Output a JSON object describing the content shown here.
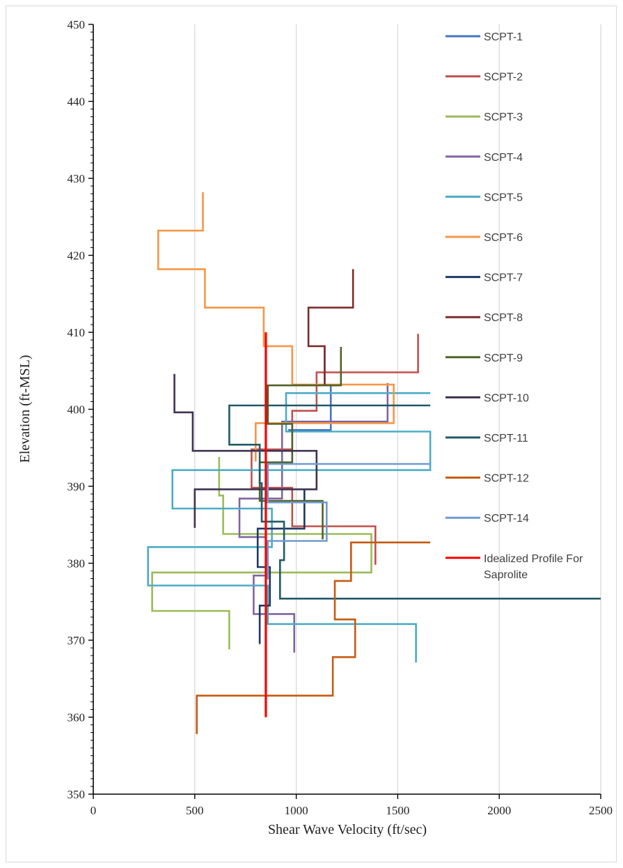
{
  "chart_data": {
    "type": "line",
    "xlabel": "Shear Wave Velocity (ft/sec)",
    "ylabel": "Elevation (ft-MSL)",
    "xlim": [
      0,
      2500
    ],
    "ylim": [
      350,
      450
    ],
    "xticks": [
      0,
      500,
      1000,
      1500,
      2000,
      2500
    ],
    "yticks": [
      350,
      360,
      370,
      380,
      390,
      400,
      410,
      420,
      430,
      440,
      450
    ],
    "grid": "vertical",
    "legend_position": "right",
    "series": [
      {
        "name": "SCPT-1",
        "color": "#4472c4",
        "points": [
          [
            1140,
            408.3
          ],
          [
            1140,
            403.1
          ],
          [
            1170,
            403.1
          ],
          [
            1170,
            397.3
          ],
          [
            960,
            397.3
          ]
        ]
      },
      {
        "name": "SCPT-2",
        "color": "#c0504d",
        "points": [
          [
            1600,
            409.8
          ],
          [
            1600,
            404.8
          ],
          [
            1100,
            404.8
          ],
          [
            1100,
            399.8
          ],
          [
            980,
            399.8
          ],
          [
            980,
            394.8
          ],
          [
            780,
            394.8
          ],
          [
            780,
            389.8
          ],
          [
            980,
            389.8
          ],
          [
            980,
            384.8
          ],
          [
            1390,
            384.8
          ],
          [
            1390,
            379.8
          ]
        ]
      },
      {
        "name": "SCPT-3",
        "color": "#9bbb59",
        "points": [
          [
            620,
            393.8
          ],
          [
            620,
            388.8
          ],
          [
            640,
            388.8
          ],
          [
            640,
            383.8
          ],
          [
            1370,
            383.8
          ],
          [
            1370,
            378.8
          ],
          [
            290,
            378.8
          ],
          [
            290,
            373.8
          ],
          [
            670,
            373.8
          ],
          [
            670,
            368.8
          ]
        ]
      },
      {
        "name": "SCPT-4",
        "color": "#8064a2",
        "points": [
          [
            1450,
            403.4
          ],
          [
            1450,
            398.4
          ],
          [
            930,
            398.4
          ],
          [
            930,
            393.4
          ],
          [
            930,
            388.4
          ],
          [
            720,
            388.4
          ],
          [
            720,
            383.4
          ],
          [
            850,
            383.4
          ],
          [
            850,
            378.4
          ],
          [
            790,
            378.4
          ],
          [
            790,
            373.4
          ],
          [
            990,
            373.4
          ],
          [
            990,
            368.4
          ]
        ]
      },
      {
        "name": "SCPT-5",
        "color": "#4bacc6",
        "points": [
          [
            1660,
            402.1
          ],
          [
            950,
            402.1
          ],
          [
            950,
            397.1
          ],
          [
            1660,
            397.1
          ],
          [
            1660,
            392.1
          ],
          [
            390,
            392.1
          ],
          [
            390,
            387.1
          ],
          [
            880,
            387.1
          ],
          [
            880,
            382.1
          ],
          [
            270,
            382.1
          ],
          [
            270,
            377.1
          ],
          [
            860,
            377.1
          ],
          [
            860,
            372.1
          ],
          [
            1590,
            372.1
          ],
          [
            1590,
            367.1
          ]
        ]
      },
      {
        "name": "SCPT-6",
        "color": "#f79646",
        "points": [
          [
            540,
            428.2
          ],
          [
            540,
            423.2
          ],
          [
            320,
            423.2
          ],
          [
            320,
            418.2
          ],
          [
            550,
            418.2
          ],
          [
            550,
            413.2
          ],
          [
            840,
            413.2
          ],
          [
            840,
            408.2
          ],
          [
            980,
            408.2
          ],
          [
            980,
            403.2
          ],
          [
            1480,
            403.2
          ],
          [
            1480,
            398.2
          ],
          [
            800,
            398.2
          ],
          [
            800,
            393.2
          ]
        ]
      },
      {
        "name": "SCPT-7",
        "color": "#1f3864",
        "points": [
          [
            1040,
            389.5
          ],
          [
            1040,
            384.5
          ],
          [
            810,
            384.5
          ],
          [
            810,
            379.5
          ],
          [
            870,
            379.5
          ],
          [
            870,
            374.5
          ],
          [
            820,
            374.5
          ],
          [
            820,
            369.5
          ]
        ]
      },
      {
        "name": "SCPT-8",
        "color": "#7b2c2c",
        "points": [
          [
            1280,
            418.2
          ],
          [
            1280,
            413.2
          ],
          [
            1060,
            413.2
          ],
          [
            1060,
            408.2
          ],
          [
            1140,
            408.2
          ],
          [
            1140,
            403.2
          ]
        ]
      },
      {
        "name": "SCPT-9",
        "color": "#4f6228",
        "points": [
          [
            1220,
            408.1
          ],
          [
            1220,
            403.1
          ],
          [
            860,
            403.1
          ],
          [
            860,
            398.1
          ],
          [
            980,
            398.1
          ],
          [
            980,
            393.1
          ],
          [
            820,
            393.1
          ],
          [
            820,
            388.1
          ],
          [
            1130,
            388.1
          ],
          [
            1130,
            383.1
          ]
        ]
      },
      {
        "name": "SCPT-10",
        "color": "#3f3151",
        "points": [
          [
            400,
            404.6
          ],
          [
            400,
            399.6
          ],
          [
            490,
            399.6
          ],
          [
            490,
            394.6
          ],
          [
            1100,
            394.6
          ],
          [
            1100,
            389.6
          ],
          [
            500,
            389.6
          ],
          [
            500,
            384.6
          ]
        ]
      },
      {
        "name": "SCPT-11",
        "color": "#215968",
        "points": [
          [
            1660,
            400.5
          ],
          [
            670,
            400.5
          ],
          [
            670,
            395.4
          ],
          [
            820,
            395.4
          ],
          [
            820,
            390.4
          ],
          [
            830,
            390.4
          ],
          [
            830,
            385.4
          ],
          [
            940,
            385.4
          ],
          [
            940,
            380.4
          ],
          [
            920,
            380.4
          ],
          [
            920,
            375.4
          ],
          [
            2500,
            375.4
          ]
        ]
      },
      {
        "name": "SCPT-12",
        "color": "#c55a11",
        "points": [
          [
            1660,
            382.7
          ],
          [
            1270,
            382.7
          ],
          [
            1270,
            377.7
          ],
          [
            1190,
            377.7
          ],
          [
            1190,
            372.7
          ],
          [
            1290,
            372.7
          ],
          [
            1290,
            367.8
          ],
          [
            1180,
            367.8
          ],
          [
            1180,
            362.8
          ],
          [
            510,
            362.8
          ],
          [
            510,
            357.8
          ]
        ]
      },
      {
        "name": "SCPT-14",
        "color": "#6f9bd1",
        "points": [
          [
            1660,
            392.9
          ],
          [
            860,
            392.9
          ],
          [
            860,
            387.9
          ],
          [
            1150,
            387.9
          ],
          [
            1150,
            382.9
          ],
          [
            860,
            382.9
          ],
          [
            860,
            377.9
          ]
        ]
      },
      {
        "name": "Idealized Profile For Saprolite",
        "color": "#ff0000",
        "points": [
          [
            850,
            410
          ],
          [
            850,
            360
          ]
        ]
      }
    ]
  }
}
